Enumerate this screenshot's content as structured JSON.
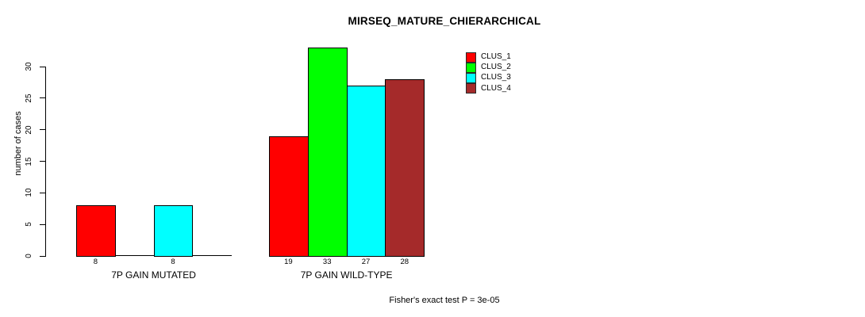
{
  "chart_data": {
    "type": "bar",
    "title": "MIRSEQ_MATURE_CHIERARCHICAL",
    "ylabel": "number of cases",
    "xlabel": "",
    "annotation": "Fisher's exact test P = 3e-05",
    "categories": [
      "7P GAIN MUTATED",
      "7P GAIN WILD-TYPE"
    ],
    "series": [
      {
        "name": "CLUS_1",
        "color": "#FF0000",
        "values": [
          8,
          19
        ]
      },
      {
        "name": "CLUS_2",
        "color": "#00FF00",
        "values": [
          0,
          33
        ]
      },
      {
        "name": "CLUS_3",
        "color": "#00FFFF",
        "values": [
          8,
          27
        ]
      },
      {
        "name": "CLUS_4",
        "color": "#A52A2A",
        "values": [
          0,
          28
        ]
      }
    ],
    "bar_value_labels": [
      [
        "8",
        "",
        "8",
        ""
      ],
      [
        "19",
        "33",
        "27",
        "28"
      ]
    ],
    "yticks": [
      0,
      5,
      10,
      15,
      20,
      25,
      30
    ],
    "ylim": [
      0,
      33
    ],
    "grid": false,
    "legend_position": "top-right",
    "bar_border_color": "#000000",
    "axis_color": "#000000"
  }
}
